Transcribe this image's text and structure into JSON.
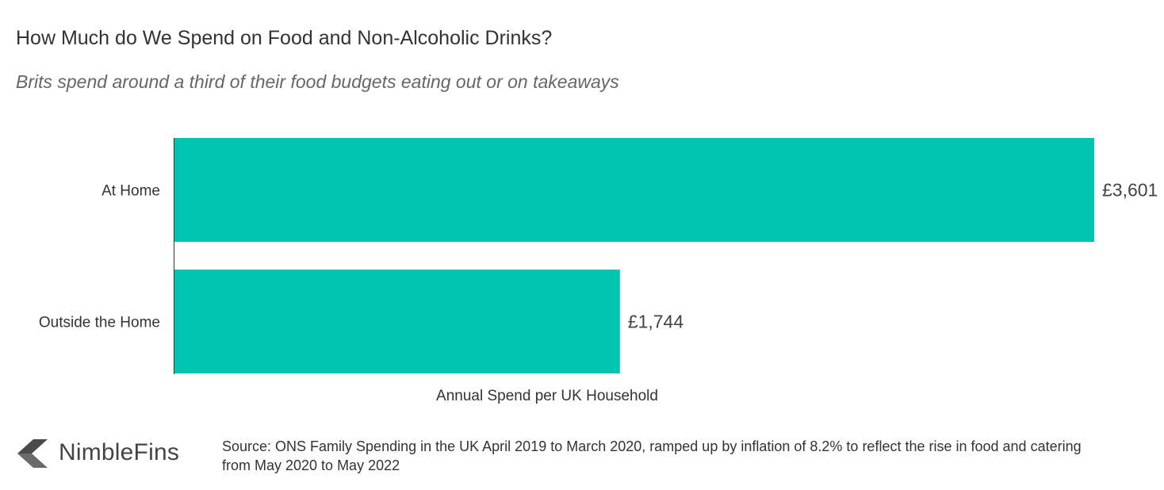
{
  "title": "How Much do We Spend on Food and Non-Alcoholic Drinks?",
  "subtitle": "Brits spend around a third of their food budgets eating out or on takeaways",
  "chart_data": {
    "type": "bar",
    "orientation": "horizontal",
    "categories": [
      "At Home",
      "Outside the Home"
    ],
    "values": [
      3601,
      1744
    ],
    "value_labels": [
      "£3,601",
      "£1,744"
    ],
    "xlabel": "Annual Spend per UK Household",
    "ylabel": "",
    "xlim": [
      0,
      3601
    ],
    "grid": false,
    "bar_color": "#00c4b0"
  },
  "footer": {
    "logo_text": "NimbleFins",
    "source": "Source: ONS Family Spending in the UK April 2019 to March 2020, ramped up by inflation of 8.2% to reflect the rise in food and catering from May 2020 to May 2022"
  },
  "colors": {
    "bar": "#00c4b0",
    "logo_mark": "#4a4a4a"
  }
}
